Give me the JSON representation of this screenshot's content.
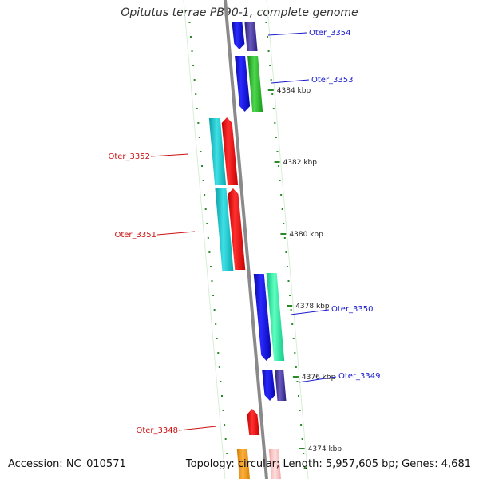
{
  "title": "Opitutus terrae PB90-1, complete genome",
  "footer": {
    "accession": "Accession: NC_010571",
    "topology": "Topology: circular; Length: 5,957,605 bp; Genes: 4,681"
  },
  "scale": [
    {
      "label": "4384 kbp"
    },
    {
      "label": "4382 kbp"
    },
    {
      "label": "4380 kbp"
    },
    {
      "label": "4378 kbp"
    },
    {
      "label": "4376 kbp"
    },
    {
      "label": "4374 kbp"
    }
  ],
  "genes": [
    {
      "label": "Oter_3354",
      "strand": "forward",
      "color": "#1a1acc"
    },
    {
      "label": "Oter_3353",
      "strand": "forward",
      "color": "#1a1acc"
    },
    {
      "label": "Oter_3352",
      "strand": "reverse",
      "color": "#cc1111"
    },
    {
      "label": "Oter_3351",
      "strand": "reverse",
      "color": "#cc1111"
    },
    {
      "label": "Oter_3350",
      "strand": "forward",
      "color": "#1a1acc"
    },
    {
      "label": "Oter_3349",
      "strand": "forward",
      "color": "#1a1acc"
    },
    {
      "label": "Oter_3348",
      "strand": "reverse",
      "color": "#cc1111"
    }
  ],
  "colors": {
    "backbone": "#8a8a8a",
    "forward_cds": "#1010e0",
    "reverse_cds": "#ff1010",
    "tick": "#2a8a2a",
    "band_cyan": "#16c8cc",
    "band_green": "#2db22d",
    "band_mint": "#2ee8a0",
    "band_purple": "#4a3a9a",
    "band_orange": "#f5a01a"
  }
}
